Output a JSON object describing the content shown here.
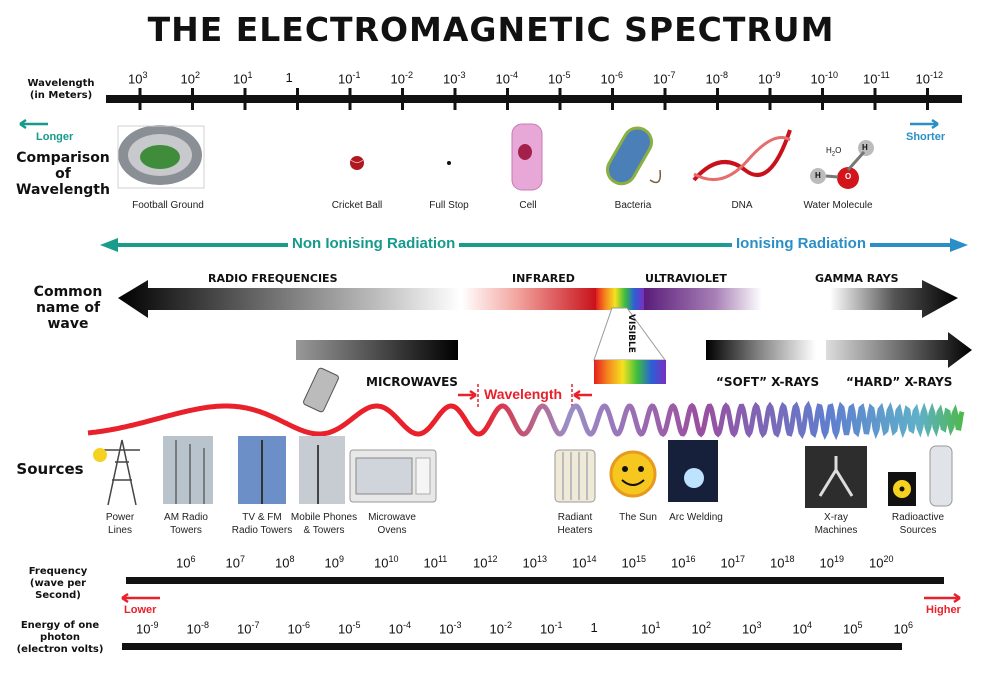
{
  "title": "THE ELECTROMAGNETIC SPECTRUM",
  "rows": {
    "wavelength": "Wavelength\n(in Meters)",
    "comparison": "Comparison\nof\nWavelength",
    "common_name": "Common\nname of wave",
    "sources": "Sources",
    "frequency": "Frequency\n(wave per Second)",
    "energy": "Energy of one\nphoton\n(electron volts)"
  },
  "wavelength_ticks": [
    {
      "base": "10",
      "exp": "3"
    },
    {
      "base": "10",
      "exp": "2"
    },
    {
      "base": "10",
      "exp": "1"
    },
    {
      "base": "1",
      "exp": ""
    },
    {
      "base": "10",
      "exp": "-1"
    },
    {
      "base": "10",
      "exp": "-2"
    },
    {
      "base": "10",
      "exp": "-3"
    },
    {
      "base": "10",
      "exp": "-4"
    },
    {
      "base": "10",
      "exp": "-5"
    },
    {
      "base": "10",
      "exp": "-6"
    },
    {
      "base": "10",
      "exp": "-7"
    },
    {
      "base": "10",
      "exp": "-8"
    },
    {
      "base": "10",
      "exp": "-9"
    },
    {
      "base": "10",
      "exp": "-10"
    },
    {
      "base": "10",
      "exp": "-11"
    },
    {
      "base": "10",
      "exp": "-12"
    }
  ],
  "longer": "Longer",
  "shorter": "Shorter",
  "comparison_items": [
    "Football Ground",
    "Cricket Ball",
    "Full Stop",
    "Cell",
    "Bacteria",
    "DNA",
    "Water Molecule"
  ],
  "water_formula": {
    "h2o": "H",
    "sub": "2",
    "o": "O",
    "h": "H"
  },
  "radiation": {
    "non_ionising": "Non Ionising Radiation",
    "ionising": "Ionising Radiation"
  },
  "wave_names": {
    "radio": "RADIO FREQUENCIES",
    "infrared": "INFRARED",
    "ultraviolet": "ULTRAVIOLET",
    "gamma": "GAMMA RAYS",
    "visible": "VISIBLE",
    "microwaves": "MICROWAVES",
    "soft_xrays": "“SOFT” X-RAYS",
    "hard_xrays": "“HARD” X-RAYS"
  },
  "wavelength_marker": "Wavelength",
  "sources": [
    "Power\nLines",
    "AM Radio\nTowers",
    "TV & FM\nRadio Towers",
    "Mobile Phones\n& Towers",
    "Microwave\nOvens",
    "Radiant\nHeaters",
    "The Sun",
    "Arc Welding",
    "X-ray\nMachines",
    "Radioactive\nSources"
  ],
  "frequency_ticks": [
    "6",
    "7",
    "8",
    "9",
    "10",
    "11",
    "12",
    "13",
    "14",
    "15",
    "16",
    "17",
    "18",
    "19",
    "20"
  ],
  "frequency_base": "10",
  "lower": "Lower",
  "higher": "Higher",
  "energy_ticks": [
    {
      "base": "10",
      "exp": "-9"
    },
    {
      "base": "10",
      "exp": "-8"
    },
    {
      "base": "10",
      "exp": "-7"
    },
    {
      "base": "10",
      "exp": "-6"
    },
    {
      "base": "10",
      "exp": "-5"
    },
    {
      "base": "10",
      "exp": "-4"
    },
    {
      "base": "10",
      "exp": "-3"
    },
    {
      "base": "10",
      "exp": "-2"
    },
    {
      "base": "10",
      "exp": "-1"
    },
    {
      "base": "1",
      "exp": ""
    },
    {
      "base": "10",
      "exp": "1"
    },
    {
      "base": "10",
      "exp": "2"
    },
    {
      "base": "10",
      "exp": "3"
    },
    {
      "base": "10",
      "exp": "4"
    },
    {
      "base": "10",
      "exp": "5"
    },
    {
      "base": "10",
      "exp": "6"
    }
  ],
  "colors": {
    "teal": "#159a8c",
    "blue": "#2a8fc7",
    "red": "#e8212b",
    "dark": "#111111"
  }
}
